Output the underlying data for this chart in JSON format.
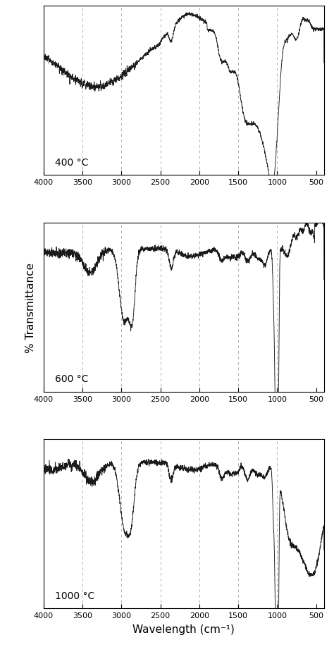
{
  "xlabel": "Wavelength (cm⁻¹)",
  "ylabel": "% Transmittance",
  "xlim": [
    4000,
    400
  ],
  "xticks": [
    4000,
    3500,
    3000,
    2500,
    2000,
    1500,
    1000,
    500
  ],
  "dashed_lines": [
    3500,
    3000,
    2500,
    2000,
    1500,
    1000
  ],
  "labels": [
    "400 °C",
    "600 °C",
    "1000 °C"
  ],
  "background_color": "#ffffff",
  "line_color": "#1a1a1a",
  "dashed_color": "#b0b0b0"
}
